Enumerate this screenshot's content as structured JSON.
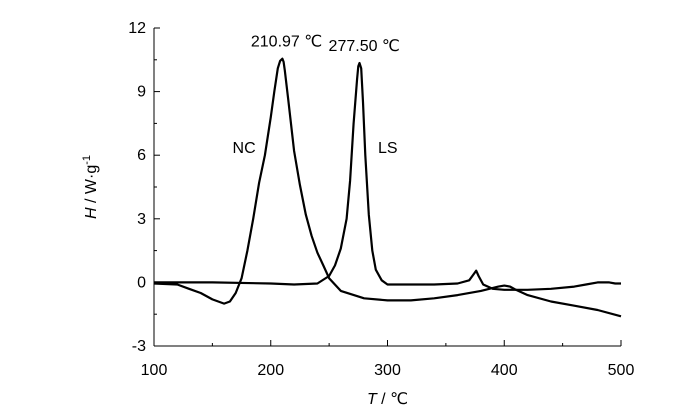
{
  "chart_data": {
    "type": "line",
    "xlim": [
      100,
      500
    ],
    "ylim": [
      -3,
      12
    ],
    "xticks": [
      100,
      200,
      300,
      400,
      500
    ],
    "yticks": [
      -3,
      0,
      3,
      6,
      9,
      12
    ],
    "xlabel": {
      "var": "T",
      "unit": " / ℃"
    },
    "ylabel": {
      "var": "H",
      "unit": " / W·g",
      "exp": "-1"
    },
    "grid": false,
    "legend": "none",
    "line_color": "#000000",
    "annotations": [
      {
        "text": "210.97 ℃",
        "x": 210.97,
        "y": 10.55
      },
      {
        "text": "277.50 ℃",
        "x": 277.5,
        "y": 10.35
      },
      {
        "text": "NC",
        "x": 190,
        "y": 6.2
      },
      {
        "text": "LS",
        "x": 290,
        "y": 6.2
      }
    ],
    "series": [
      {
        "name": "NC",
        "x": [
          100,
          120,
          130,
          140,
          150,
          160,
          165,
          170,
          175,
          180,
          185,
          190,
          195,
          200,
          203,
          206,
          208,
          210,
          211,
          212,
          215,
          220,
          225,
          230,
          235,
          240,
          245,
          250,
          260,
          280,
          300,
          320,
          340,
          360,
          380,
          395,
          400,
          405,
          410,
          420,
          440,
          460,
          480,
          500
        ],
        "y": [
          -0.05,
          -0.1,
          -0.3,
          -0.5,
          -0.8,
          -1.0,
          -0.9,
          -0.5,
          0.2,
          1.5,
          3.0,
          4.7,
          6.0,
          7.8,
          9.0,
          10.1,
          10.45,
          10.55,
          10.4,
          10.0,
          8.6,
          6.2,
          4.6,
          3.2,
          2.2,
          1.4,
          0.8,
          0.2,
          -0.4,
          -0.75,
          -0.85,
          -0.85,
          -0.75,
          -0.6,
          -0.4,
          -0.2,
          -0.15,
          -0.2,
          -0.35,
          -0.6,
          -0.9,
          -1.1,
          -1.3,
          -1.6
        ]
      },
      {
        "name": "LS",
        "x": [
          100,
          150,
          200,
          220,
          240,
          250,
          255,
          260,
          265,
          268,
          271,
          274,
          275,
          276,
          277.5,
          279,
          281,
          284,
          287,
          290,
          295,
          300,
          320,
          340,
          360,
          370,
          374,
          376,
          378,
          382,
          390,
          400,
          420,
          440,
          460,
          470,
          480,
          490,
          495,
          500
        ],
        "y": [
          0.0,
          0.0,
          -0.05,
          -0.1,
          -0.05,
          0.3,
          0.8,
          1.6,
          3.0,
          4.8,
          7.5,
          9.6,
          10.2,
          10.35,
          10.1,
          8.5,
          6.0,
          3.2,
          1.5,
          0.6,
          0.1,
          -0.1,
          -0.1,
          -0.1,
          -0.05,
          0.1,
          0.4,
          0.55,
          0.3,
          -0.1,
          -0.3,
          -0.35,
          -0.35,
          -0.3,
          -0.2,
          -0.1,
          0.0,
          0.0,
          -0.05,
          -0.05
        ]
      }
    ]
  }
}
